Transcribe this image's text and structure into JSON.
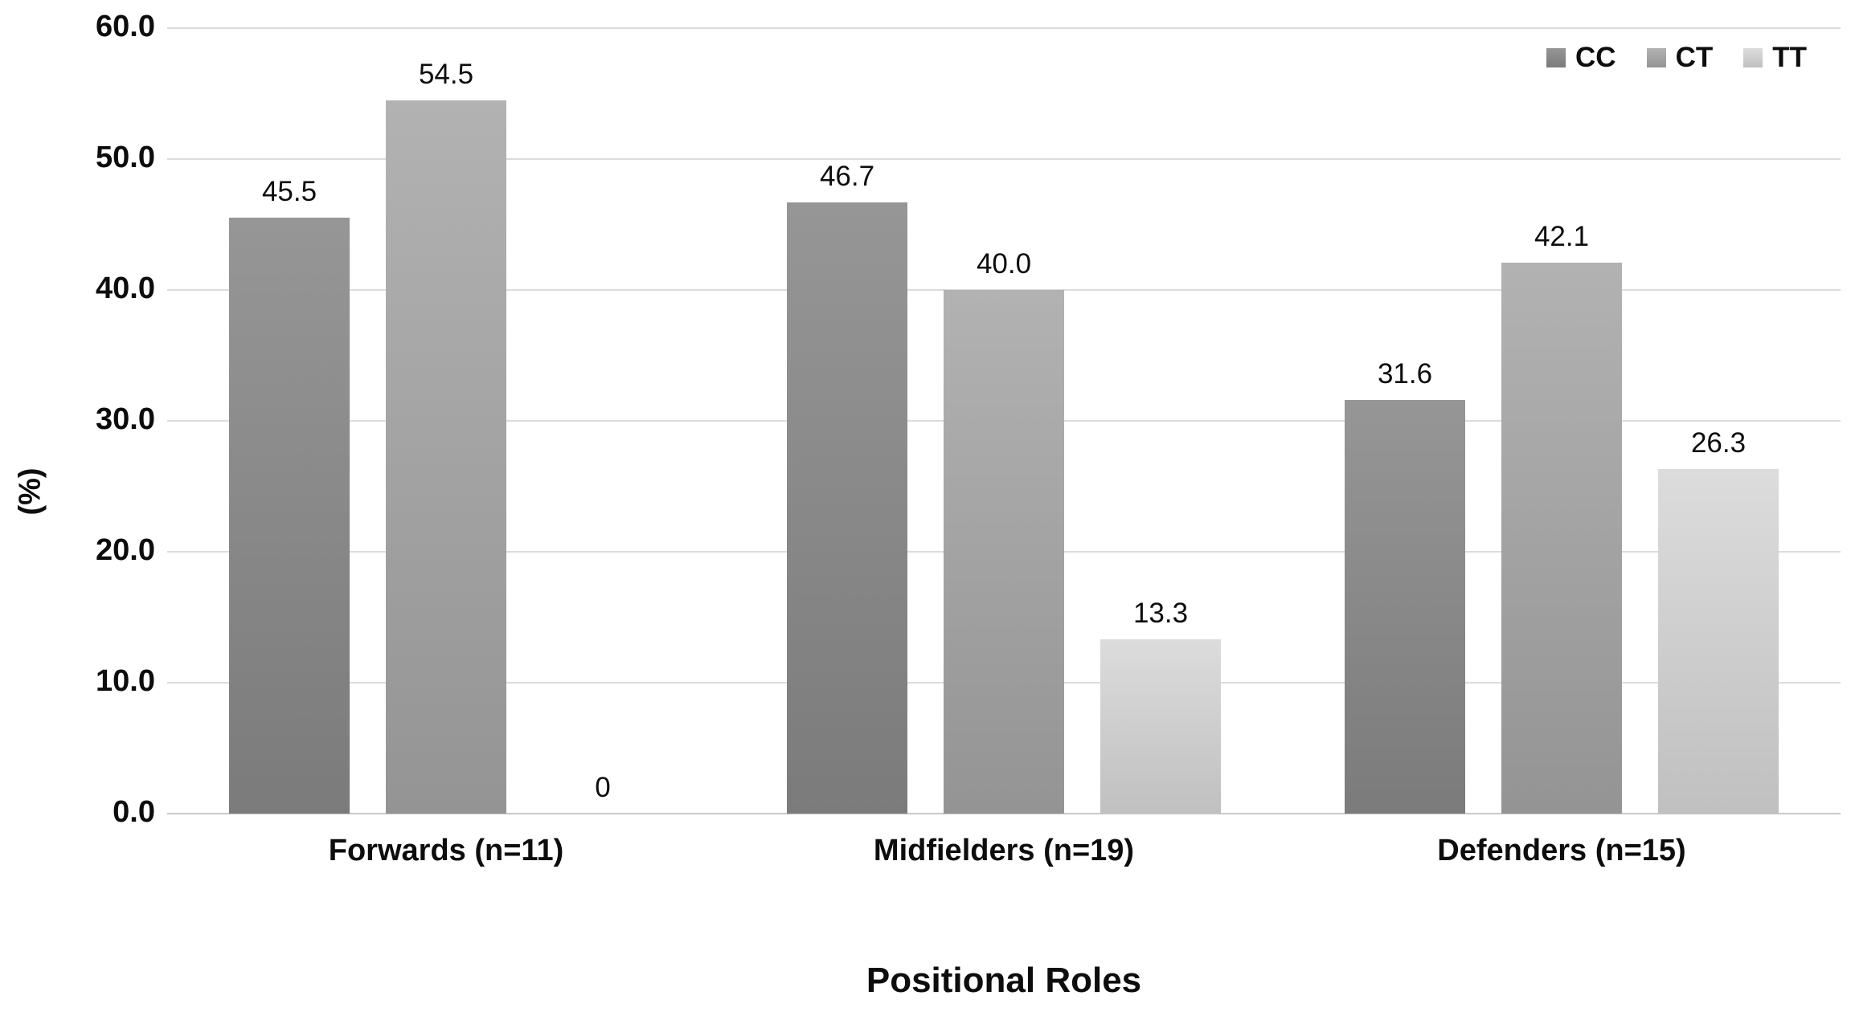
{
  "chart_data": {
    "type": "bar",
    "title": "",
    "xlabel": "Positional Roles",
    "ylabel": "(%)",
    "ylim": [
      0,
      60
    ],
    "ytick_step": 10,
    "ytick_labels": [
      "0.0",
      "10.0",
      "20.0",
      "30.0",
      "40.0",
      "50.0",
      "60.0"
    ],
    "grid": true,
    "legend_position": "top-right",
    "categories": [
      "Forwards (n=11)",
      "Midfielders (n=19)",
      "Defenders (n=15)"
    ],
    "series": [
      {
        "name": "CC",
        "values": [
          45.5,
          46.7,
          31.6
        ],
        "labels": [
          "45.5",
          "46.7",
          "31.6"
        ],
        "color_top": "#969696",
        "color_bottom": "#7b7b7b"
      },
      {
        "name": "CT",
        "values": [
          54.5,
          40.0,
          42.1
        ],
        "labels": [
          "54.5",
          "40.0",
          "42.1"
        ],
        "color_top": "#b2b2b2",
        "color_bottom": "#949494"
      },
      {
        "name": "TT",
        "values": [
          0,
          13.3,
          26.3
        ],
        "labels": [
          "0",
          "13.3",
          "26.3"
        ],
        "color_top": "#dcdcdc",
        "color_bottom": "#c0c0c0"
      }
    ]
  }
}
